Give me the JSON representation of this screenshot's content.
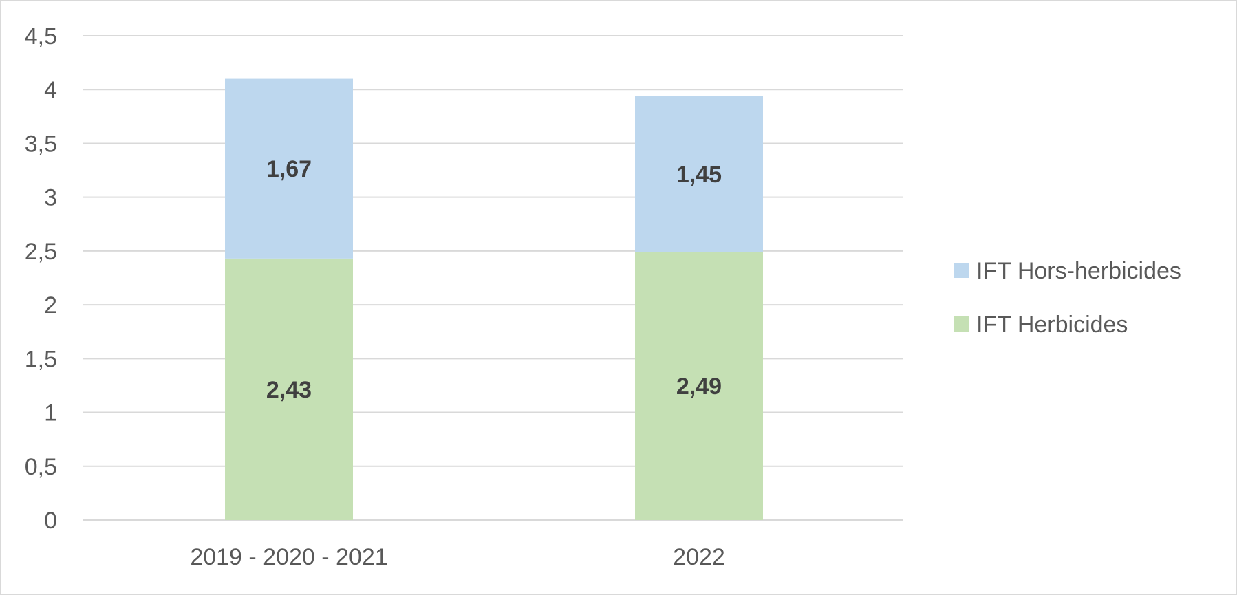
{
  "chart_data": {
    "type": "bar",
    "stacked": true,
    "categories": [
      "2019 - 2020 - 2021",
      "2022"
    ],
    "series": [
      {
        "name": "IFT Herbicides",
        "values": [
          2.43,
          2.49
        ],
        "labels": [
          "2,43",
          "2,49"
        ],
        "color": "#c5e0b4"
      },
      {
        "name": "IFT Hors-herbicides",
        "values": [
          1.67,
          1.45
        ],
        "labels": [
          "1,67",
          "1,45"
        ],
        "color": "#bdd7ee"
      }
    ],
    "ylim": [
      0,
      4.5
    ],
    "yticks": [
      0,
      0.5,
      1,
      1.5,
      2,
      2.5,
      3,
      3.5,
      4,
      4.5
    ],
    "ytick_labels": [
      "0",
      "0,5",
      "1",
      "1,5",
      "2",
      "2,5",
      "3",
      "3,5",
      "4",
      "4,5"
    ],
    "grid": true,
    "legend_position": "right",
    "legend_order": [
      "IFT Hors-herbicides",
      "IFT Herbicides"
    ],
    "title": "",
    "xlabel": "",
    "ylabel": "",
    "colors": {
      "gridline": "#d9d9d9",
      "axis_text": "#595959",
      "data_label": "#404040"
    }
  }
}
